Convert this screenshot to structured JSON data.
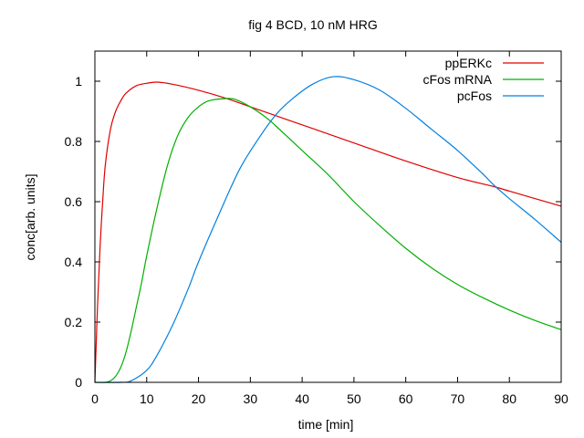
{
  "chart_data": {
    "type": "line",
    "title": "fig 4 BCD, 10 nM HRG",
    "xlabel": "time [min]",
    "ylabel": "conc[arb. units]",
    "xlim": [
      0,
      90
    ],
    "ylim": [
      0,
      1.1
    ],
    "xticks": [
      0,
      10,
      20,
      30,
      40,
      50,
      60,
      70,
      80,
      90
    ],
    "xtick_labels": [
      "0",
      "10",
      "20",
      "30",
      "40",
      "50",
      "60",
      "70",
      "80",
      "90"
    ],
    "yticks": [
      0,
      0.2,
      0.4,
      0.6,
      0.8,
      1
    ],
    "ytick_labels": [
      "0",
      "0.2",
      "0.4",
      "0.6",
      "0.8",
      "1"
    ],
    "grid": false,
    "legend_position": "top-right",
    "series": [
      {
        "name": "ppERKc",
        "color": "#e00000",
        "x": [
          0,
          0.5,
          1,
          1.5,
          2,
          3,
          4,
          5,
          6,
          8,
          10,
          12,
          15,
          20,
          25,
          30,
          35,
          40,
          50,
          60,
          70,
          77,
          80,
          90
        ],
        "y": [
          0,
          0.25,
          0.45,
          0.6,
          0.72,
          0.84,
          0.9,
          0.935,
          0.96,
          0.985,
          0.993,
          0.997,
          0.99,
          0.97,
          0.945,
          0.915,
          0.885,
          0.855,
          0.795,
          0.735,
          0.68,
          0.65,
          0.635,
          0.585
        ]
      },
      {
        "name": "cFos mRNA",
        "color": "#00b000",
        "x": [
          0,
          2,
          3,
          4,
          5,
          6,
          7,
          8,
          9,
          10,
          12,
          14,
          16,
          18,
          20,
          22,
          25,
          27,
          30,
          33,
          35,
          40,
          45,
          50,
          55,
          60,
          65,
          70,
          75,
          80,
          85,
          90
        ],
        "y": [
          0,
          0,
          0.005,
          0.02,
          0.05,
          0.1,
          0.17,
          0.25,
          0.33,
          0.42,
          0.58,
          0.72,
          0.82,
          0.88,
          0.915,
          0.935,
          0.942,
          0.94,
          0.915,
          0.88,
          0.85,
          0.77,
          0.69,
          0.6,
          0.52,
          0.445,
          0.38,
          0.325,
          0.28,
          0.24,
          0.205,
          0.175
        ]
      },
      {
        "name": "pcFos",
        "color": "#0080e0",
        "x": [
          0,
          5,
          7,
          10,
          12,
          15,
          18,
          20,
          24,
          28,
          32,
          35,
          38,
          42,
          46,
          50,
          55,
          60,
          65,
          70,
          75,
          77,
          80,
          85,
          90
        ],
        "y": [
          0,
          0,
          0.005,
          0.04,
          0.09,
          0.19,
          0.31,
          0.4,
          0.56,
          0.71,
          0.82,
          0.89,
          0.94,
          0.99,
          1.015,
          1.005,
          0.97,
          0.91,
          0.84,
          0.77,
          0.69,
          0.655,
          0.61,
          0.54,
          0.465
        ]
      }
    ]
  }
}
